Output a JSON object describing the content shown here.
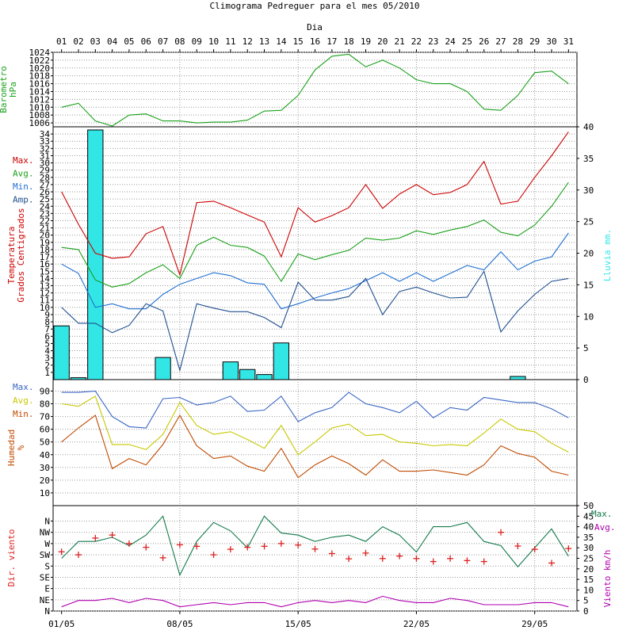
{
  "title": "Climograma Pedreguer para el mes 05/2010",
  "top_axis_label": "Dia",
  "days": [
    "01",
    "02",
    "03",
    "04",
    "05",
    "06",
    "07",
    "08",
    "09",
    "10",
    "11",
    "12",
    "13",
    "14",
    "15",
    "16",
    "17",
    "18",
    "19",
    "20",
    "21",
    "22",
    "23",
    "24",
    "25",
    "26",
    "27",
    "28",
    "29",
    "30",
    "31"
  ],
  "bottom_dates": [
    "01/05",
    "08/05",
    "15/05",
    "22/05",
    "29/05"
  ],
  "colors": {
    "pressure": "#1aa01a",
    "max": "#cc0000",
    "avg": "#1aa01a",
    "min": "#1f6fd1",
    "amp": "#1f4f8f",
    "rain": "#33e6e6",
    "hum_max": "#3a66c4",
    "hum_avg": "#c8c800",
    "hum_min": "#c04a00",
    "wind_max": "#127a4a",
    "wind_avg": "#b000b0",
    "wind_dir": "#dd2222"
  },
  "chart_data": [
    {
      "type": "line",
      "panel": "pressure",
      "ylabel": "Barometro\nhPa",
      "ylim": [
        1006,
        1024
      ],
      "y_ticks": [
        1006,
        1008,
        1010,
        1012,
        1014,
        1016,
        1018,
        1020,
        1022,
        1024
      ],
      "series": [
        {
          "values": [
            1010,
            1011,
            1006.5,
            1005.2,
            1008,
            1008.3,
            1006.5,
            1006.5,
            1006,
            1006.2,
            1006.2,
            1006.7,
            1009,
            1009.2,
            1013,
            1019.5,
            1023,
            1023.5,
            1020.3,
            1022,
            1020,
            1017,
            1016,
            1016,
            1014,
            1009.5,
            1009.2,
            1013,
            1018.8,
            1019.2,
            1016
          ]
        }
      ]
    },
    {
      "type": "line+bar",
      "panel": "temperature",
      "ylabel": "Temperatura\nGrados Centigrados",
      "y2label": "Lluvia mm.",
      "ylim": [
        1,
        34
      ],
      "y2lim": [
        0,
        40
      ],
      "y_ticks": [
        1,
        2,
        3,
        4,
        5,
        6,
        7,
        8,
        9,
        10,
        11,
        12,
        13,
        14,
        15,
        16,
        17,
        18,
        19,
        20,
        21,
        22,
        23,
        24,
        25,
        26,
        27,
        28,
        29,
        30,
        31,
        32,
        33,
        34
      ],
      "y2_ticks": [
        0,
        5,
        10,
        15,
        20,
        25,
        30,
        35,
        40
      ],
      "legend": [
        "Max.",
        "Avg.",
        "Min.",
        "Amp."
      ],
      "series": [
        {
          "name": "Max.",
          "values": [
            26,
            21.5,
            17.5,
            16.8,
            17,
            20.2,
            21.2,
            14.5,
            24.5,
            24.7,
            23.8,
            22.8,
            21.8,
            17,
            23.8,
            21.8,
            22.7,
            23.8,
            27,
            23.7,
            25.7,
            27,
            25.6,
            25.9,
            27,
            30.2,
            24.3,
            24.7,
            28,
            31,
            34.3
          ]
        },
        {
          "name": "Avg.",
          "values": [
            18.3,
            18,
            13.8,
            12.8,
            13.3,
            14.8,
            15.9,
            14,
            18.6,
            19.7,
            18.6,
            18.3,
            17.1,
            13.6,
            17.4,
            16.6,
            17.3,
            17.9,
            19.6,
            19.3,
            19.6,
            20.6,
            20.1,
            20.7,
            21.2,
            22.1,
            20.4,
            19.9,
            21.4,
            24,
            27.3
          ]
        },
        {
          "name": "Min.",
          "values": [
            16,
            14.7,
            10,
            10.5,
            9.8,
            9.8,
            11.8,
            13.2,
            14,
            14.8,
            14.4,
            13.4,
            13.2,
            9.8,
            10.5,
            11.3,
            12,
            12.6,
            13.7,
            14.8,
            13.6,
            14.8,
            13.6,
            14.7,
            15.8,
            15.2,
            17.7,
            15.2,
            16.4,
            17,
            20.3
          ]
        },
        {
          "name": "Amp.",
          "values": [
            10,
            7.8,
            7.8,
            6.5,
            7.5,
            10.5,
            9.5,
            1.3,
            10.5,
            9.9,
            9.4,
            9.4,
            8.6,
            7.2,
            13.5,
            11,
            11,
            11.5,
            14,
            9,
            12.2,
            12.8,
            12,
            11.3,
            11.4,
            15,
            6.6,
            9.5,
            11.8,
            13.6,
            14
          ]
        },
        {
          "name": "Lluvia",
          "axis": "y2",
          "bar": true,
          "values": [
            8.5,
            0.3,
            39.5,
            0,
            0,
            0,
            3.5,
            0,
            0,
            0,
            2.8,
            1.6,
            0.8,
            5.8,
            0,
            0,
            0,
            0,
            0,
            0,
            0,
            0,
            0,
            0,
            0,
            0,
            0,
            0.5,
            0,
            0,
            0
          ]
        }
      ]
    },
    {
      "type": "line",
      "panel": "humidity",
      "ylabel": "Humedad\n%",
      "ylim": [
        0,
        95
      ],
      "y_ticks": [
        10,
        20,
        30,
        40,
        50,
        60,
        70,
        80,
        90
      ],
      "legend": [
        "Max.",
        "Avg.",
        "Min."
      ],
      "series": [
        {
          "name": "Max.",
          "values": [
            89,
            89,
            90,
            70,
            62,
            61,
            84,
            85,
            79,
            81,
            86,
            74,
            75,
            86,
            66,
            73,
            77,
            89,
            80,
            77,
            73,
            82,
            69,
            77,
            75,
            85,
            83,
            81,
            81,
            76,
            69
          ]
        },
        {
          "name": "Avg.",
          "values": [
            80,
            78,
            86,
            48,
            48,
            44,
            56,
            81,
            63,
            56,
            58,
            52,
            45,
            63,
            40,
            50,
            61,
            64,
            55,
            56,
            50,
            49,
            47,
            48,
            47,
            57,
            68,
            60,
            58,
            49,
            42
          ]
        },
        {
          "name": "Min.",
          "values": [
            50,
            61,
            71,
            29,
            37,
            32,
            48,
            71,
            47,
            37,
            39,
            31,
            27,
            45,
            22,
            32,
            39,
            33,
            24,
            36,
            27,
            27,
            28,
            26,
            24,
            32,
            47,
            41,
            38,
            27,
            24
          ]
        }
      ]
    },
    {
      "type": "line+scatter",
      "panel": "wind",
      "ylabel": "Dir. viento",
      "y2label": "Viento km/h",
      "dir_ticks": [
        "N",
        "NE",
        "E",
        "SE",
        "S",
        "SW",
        "W",
        "NW",
        "N"
      ],
      "y2lim": [
        0,
        50
      ],
      "y2_ticks": [
        0,
        5,
        10,
        15,
        20,
        25,
        30,
        35,
        40,
        45,
        50
      ],
      "legend": [
        "Max.",
        "Avg."
      ],
      "series": [
        {
          "name": "Max.",
          "values": [
            25,
            33,
            33,
            35,
            31,
            36,
            45,
            17,
            33,
            42,
            38,
            30,
            45,
            37,
            36,
            33,
            35,
            36,
            33,
            40,
            36,
            28,
            40,
            40,
            42,
            33,
            31,
            21,
            30,
            39,
            26
          ]
        },
        {
          "name": "Avg.",
          "values": [
            2,
            5,
            5,
            6,
            4,
            6,
            5,
            2,
            3,
            4,
            3,
            4,
            4,
            2,
            4,
            5,
            4,
            5,
            4,
            7,
            5,
            4,
            4,
            6,
            5,
            3,
            3,
            3,
            4,
            4,
            2
          ]
        },
        {
          "name": "Dir.",
          "marker": "+",
          "unit": "deg",
          "values": [
            237,
            225,
            292,
            304,
            270,
            255,
            213,
            265,
            259,
            225,
            247,
            255,
            259,
            270,
            264,
            248,
            230,
            209,
            232,
            210,
            220,
            210,
            198,
            210,
            202,
            198,
            315,
            260,
            247,
            192,
            250
          ]
        }
      ]
    }
  ]
}
